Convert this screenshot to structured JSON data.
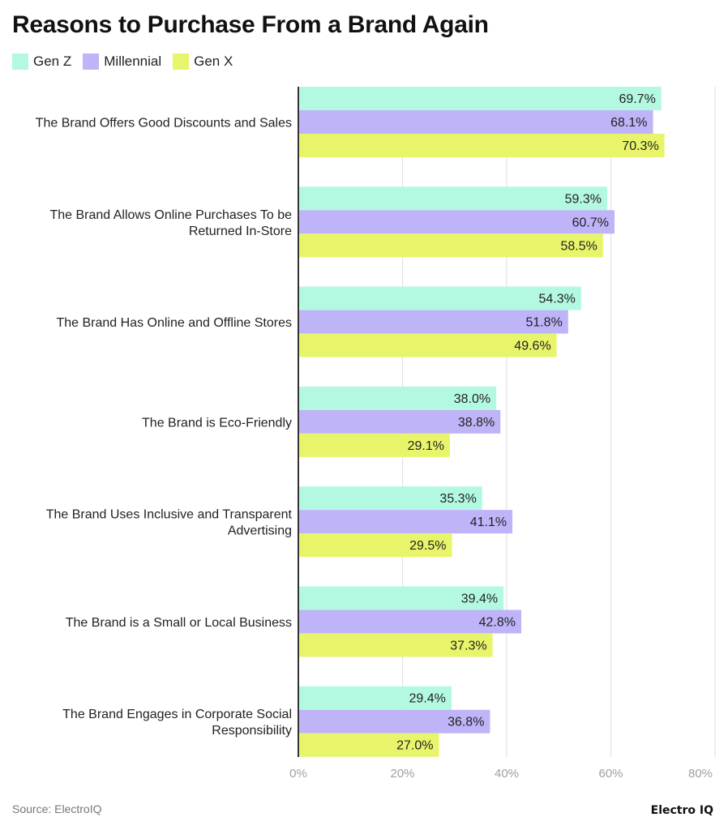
{
  "chart_data": {
    "type": "bar",
    "orientation": "horizontal",
    "title": "Reasons to Purchase From a Brand Again",
    "categories": [
      [
        "The Brand Offers Good Discounts and Sales"
      ],
      [
        "The Brand Allows Online Purchases To be",
        "Returned In-Store"
      ],
      [
        "The Brand Has Online and Offline Stores"
      ],
      [
        "The Brand is Eco-Friendly"
      ],
      [
        "The Brand Uses Inclusive and Transparent",
        "Advertising"
      ],
      [
        "The Brand is a Small or Local Business"
      ],
      [
        "The Brand Engages in Corporate Social",
        "Responsibility"
      ]
    ],
    "series": [
      {
        "name": "Gen Z",
        "color": "#b3f9e2",
        "values": [
          69.7,
          59.3,
          54.3,
          38.0,
          35.3,
          39.4,
          29.4
        ]
      },
      {
        "name": "Millennial",
        "color": "#c0b4f9",
        "values": [
          68.1,
          60.7,
          51.8,
          38.8,
          41.1,
          42.8,
          36.8
        ]
      },
      {
        "name": "Gen X",
        "color": "#e8f56a",
        "values": [
          70.3,
          58.5,
          49.6,
          29.1,
          29.5,
          37.3,
          27.0
        ]
      }
    ],
    "xlim": [
      0,
      80
    ],
    "xticks": [
      "0%",
      "20%",
      "40%",
      "60%",
      "80%"
    ],
    "xtick_values": [
      0,
      20,
      40,
      60,
      80
    ],
    "grid": true,
    "legend_position": "top-left",
    "value_suffix": "%"
  },
  "source": "Source: ElectroIQ",
  "logo": "Electro IQ"
}
